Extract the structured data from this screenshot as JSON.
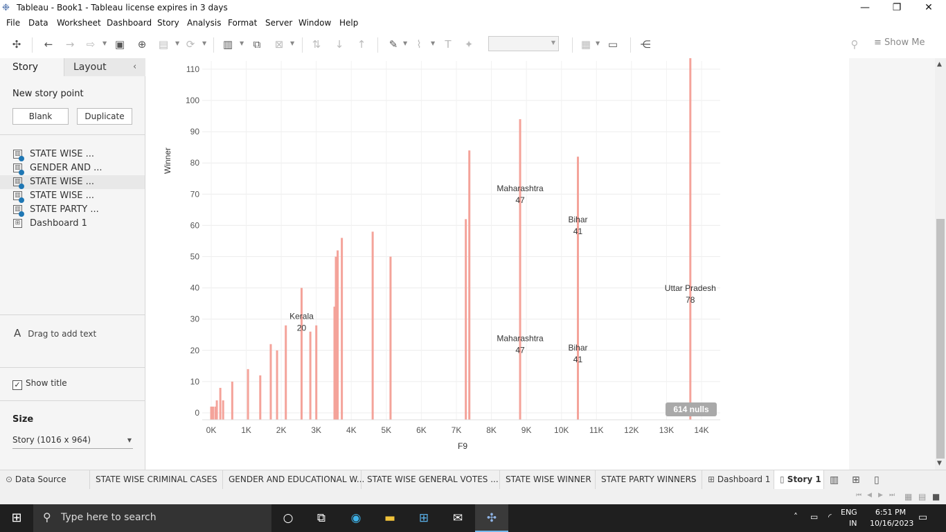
{
  "window": {
    "title": "Tableau - Book1 - Tableau license expires in 3 days",
    "minimize": "—",
    "restore": "❐",
    "close": "✕"
  },
  "menu": [
    "File",
    "Data",
    "Worksheet",
    "Dashboard",
    "Story",
    "Analysis",
    "Format",
    "Server",
    "Window",
    "Help"
  ],
  "toolbar": {
    "show_me": "Show Me"
  },
  "sidepanel": {
    "tab_story": "Story",
    "tab_layout": "Layout",
    "new_story_point": "New story point",
    "blank": "Blank",
    "duplicate": "Duplicate",
    "sheets": [
      {
        "label": "STATE WISE ...",
        "type": "worksheet"
      },
      {
        "label": "GENDER AND ...",
        "type": "worksheet"
      },
      {
        "label": "STATE WISE ...",
        "type": "worksheet"
      },
      {
        "label": "STATE WISE ...",
        "type": "worksheet"
      },
      {
        "label": "STATE PARTY ...",
        "type": "worksheet"
      },
      {
        "label": "Dashboard 1",
        "type": "dashboard"
      }
    ],
    "drag_text": "Drag to add text",
    "show_title": "Show title",
    "size_label": "Size",
    "size_value": "Story (1016 x 964)"
  },
  "chart_data": {
    "type": "bar",
    "xlabel": "F9",
    "ylabel": "Winner",
    "x_ticks": [
      "0K",
      "1K",
      "2K",
      "3K",
      "4K",
      "5K",
      "6K",
      "7K",
      "8K",
      "9K",
      "10K",
      "11K",
      "12K",
      "13K",
      "14K"
    ],
    "y_ticks": [
      0,
      10,
      20,
      30,
      40,
      50,
      60,
      70,
      80,
      90,
      100,
      110
    ],
    "xlim": [
      0,
      14000
    ],
    "color": "#f4a39a",
    "bars": [
      {
        "x": 0,
        "y": 2
      },
      {
        "x": 50,
        "y": 2
      },
      {
        "x": 120,
        "y": 2
      },
      {
        "x": 160,
        "y": 4
      },
      {
        "x": 260,
        "y": 8
      },
      {
        "x": 340,
        "y": 4
      },
      {
        "x": 600,
        "y": 10
      },
      {
        "x": 1050,
        "y": 14
      },
      {
        "x": 1400,
        "y": 12
      },
      {
        "x": 1700,
        "y": 22
      },
      {
        "x": 1880,
        "y": 20
      },
      {
        "x": 2130,
        "y": 28
      },
      {
        "x": 2580,
        "y": 40
      },
      {
        "x": 2830,
        "y": 26
      },
      {
        "x": 3000,
        "y": 28
      },
      {
        "x": 3520,
        "y": 34
      },
      {
        "x": 3560,
        "y": 50
      },
      {
        "x": 3610,
        "y": 52
      },
      {
        "x": 3730,
        "y": 56
      },
      {
        "x": 4610,
        "y": 58
      },
      {
        "x": 5120,
        "y": 50
      },
      {
        "x": 7270,
        "y": 62
      },
      {
        "x": 7370,
        "y": 84
      },
      {
        "x": 8820,
        "y": 94
      },
      {
        "x": 10470,
        "y": 82
      },
      {
        "x": 13680,
        "y": 120
      }
    ],
    "labels": [
      {
        "name": "Kerala",
        "value": "20",
        "x": 2580,
        "y": 30
      },
      {
        "name": "Maharashtra",
        "value": "47",
        "x": 8820,
        "y": 71
      },
      {
        "name": "Maharashtra",
        "value": "47",
        "x": 8820,
        "y": 23
      },
      {
        "name": "Bihar",
        "value": "41",
        "x": 10470,
        "y": 61
      },
      {
        "name": "Bihar",
        "value": "41",
        "x": 10470,
        "y": 20
      },
      {
        "name": "Uttar Pradesh",
        "value": "78",
        "x": 13680,
        "y": 39
      }
    ],
    "nulls_badge": "614 nulls"
  },
  "tabs": [
    {
      "label": "Data Source",
      "kind": "datasource"
    },
    {
      "label": "STATE WISE CRIMINAL CASES",
      "kind": "sheet"
    },
    {
      "label": "GENDER AND EDUCATIONAL W...",
      "kind": "sheet"
    },
    {
      "label": "STATE WISE GENERAL VOTES ...",
      "kind": "sheet"
    },
    {
      "label": "STATE WISE WINNER",
      "kind": "sheet"
    },
    {
      "label": "STATE PARTY WINNERS",
      "kind": "sheet"
    },
    {
      "label": "Dashboard 1",
      "kind": "dashboard"
    },
    {
      "label": "Story 1",
      "kind": "story"
    }
  ],
  "taskbar": {
    "search_placeholder": "Type here to search",
    "lang1": "ENG",
    "lang2": "IN",
    "time": "6:51 PM",
    "date": "10/16/2023"
  }
}
